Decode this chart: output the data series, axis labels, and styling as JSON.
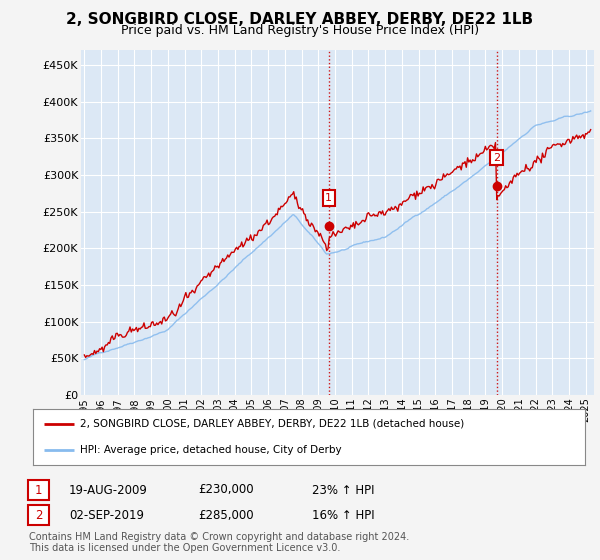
{
  "title": "2, SONGBIRD CLOSE, DARLEY ABBEY, DERBY, DE22 1LB",
  "subtitle": "Price paid vs. HM Land Registry's House Price Index (HPI)",
  "title_fontsize": 11,
  "subtitle_fontsize": 9,
  "ylabel_ticks": [
    "£0",
    "£50K",
    "£100K",
    "£150K",
    "£200K",
    "£250K",
    "£300K",
    "£350K",
    "£400K",
    "£450K"
  ],
  "ytick_vals": [
    0,
    50000,
    100000,
    150000,
    200000,
    250000,
    300000,
    350000,
    400000,
    450000
  ],
  "ylim": [
    0,
    470000
  ],
  "xlim_start": 1994.8,
  "xlim_end": 2025.5,
  "fig_bg_color": "#f4f4f4",
  "plot_bg_color": "#dce8f5",
  "grid_color": "#ffffff",
  "hpi_color": "#88bbee",
  "price_color": "#cc0000",
  "marker1_x": 2009.63,
  "marker1_y": 230000,
  "marker2_x": 2019.67,
  "marker2_y": 285000,
  "vline1_x": 2009.63,
  "vline2_x": 2019.67,
  "legend_entry1": "2, SONGBIRD CLOSE, DARLEY ABBEY, DERBY, DE22 1LB (detached house)",
  "legend_entry2": "HPI: Average price, detached house, City of Derby",
  "table_row1": [
    "1",
    "19-AUG-2009",
    "£230,000",
    "23% ↑ HPI"
  ],
  "table_row2": [
    "2",
    "02-SEP-2019",
    "£285,000",
    "16% ↑ HPI"
  ],
  "footer": "Contains HM Land Registry data © Crown copyright and database right 2024.\nThis data is licensed under the Open Government Licence v3.0.",
  "xtick_years": [
    1995,
    1996,
    1997,
    1998,
    1999,
    2000,
    2001,
    2002,
    2003,
    2004,
    2005,
    2006,
    2007,
    2008,
    2009,
    2010,
    2011,
    2012,
    2013,
    2014,
    2015,
    2016,
    2017,
    2018,
    2019,
    2020,
    2021,
    2022,
    2023,
    2024,
    2025
  ]
}
